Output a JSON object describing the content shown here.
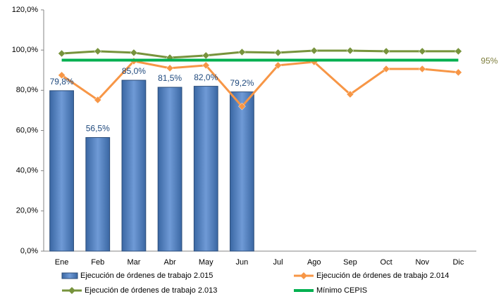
{
  "chart_data": {
    "type": "combo",
    "categories": [
      "Ene",
      "Feb",
      "Mar",
      "Abr",
      "May",
      "Jun",
      "Jul",
      "Ago",
      "Sep",
      "Oct",
      "Nov",
      "Dic"
    ],
    "series": [
      {
        "name": "Ejecución de órdenes de trabajo 2.015",
        "type": "bar",
        "color": "#4f81bd",
        "values": [
          79.8,
          56.5,
          85.0,
          81.5,
          82.0,
          79.2,
          null,
          null,
          null,
          null,
          null,
          null
        ],
        "value_labels": [
          "79,8%",
          "56,5%",
          "85,0%",
          "81,5%",
          "82,0%",
          "79,2%",
          null,
          null,
          null,
          null,
          null,
          null
        ]
      },
      {
        "name": "Ejecución de órdenes de trabajo 2.014",
        "type": "line",
        "marker": "diamond",
        "color": "#f79646",
        "values": [
          87.5,
          75.2,
          94.5,
          91.0,
          92.4,
          72.0,
          92.4,
          94.1,
          78.0,
          90.6,
          90.6,
          88.9
        ]
      },
      {
        "name": "Ejecución de órdenes de trabajo 2.013",
        "type": "line",
        "marker": "diamond",
        "color": "#77933c",
        "values": [
          98.3,
          99.4,
          98.7,
          96.2,
          97.3,
          99.0,
          98.7,
          99.7,
          99.7,
          99.4,
          99.4,
          99.4
        ]
      },
      {
        "name": "Mínimo CEPIS",
        "type": "line",
        "color": "#00b050",
        "values": [
          95,
          95,
          95,
          95,
          95,
          95,
          95,
          95,
          95,
          95,
          95,
          95
        ],
        "value_labels": [
          null,
          null,
          null,
          null,
          null,
          null,
          null,
          null,
          null,
          null,
          null,
          "95%"
        ]
      }
    ],
    "ylim": [
      0,
      120
    ],
    "yticks": [
      {
        "value": 0,
        "label": "0,0%"
      },
      {
        "value": 20,
        "label": "20,0%"
      },
      {
        "value": 40,
        "label": "40,0%"
      },
      {
        "value": 60,
        "label": "60,0%"
      },
      {
        "value": 80,
        "label": "80,0%"
      },
      {
        "value": 100,
        "label": "100,0%"
      },
      {
        "value": 120,
        "label": "120,0%"
      }
    ],
    "legend": "bottom"
  }
}
